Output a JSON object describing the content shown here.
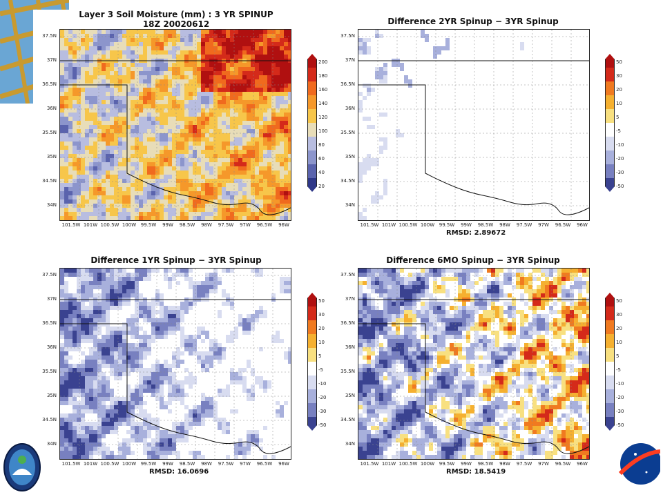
{
  "panels": [
    {
      "title_line1": "Layer 3 Soil Moisture (mm) : 3 YR SPINUP",
      "title_line2": "18Z 20020612",
      "rmsd": "",
      "colorbar": [
        "200",
        "180",
        "160",
        "140",
        "120",
        "100",
        "80",
        "60",
        "40",
        "20"
      ],
      "scheme": "moisture"
    },
    {
      "title_line1": "Difference 2YR Spinup − 3YR Spinup",
      "title_line2": "",
      "rmsd": "RMSD: 2.89672",
      "colorbar": [
        "50",
        "30",
        "20",
        "10",
        "5",
        "-5",
        "-10",
        "-20",
        "-30",
        "-50"
      ],
      "scheme": "diff-small"
    },
    {
      "title_line1": "Difference 1YR Spinup − 3YR Spinup",
      "title_line2": "",
      "rmsd": "RMSD: 16.0696",
      "colorbar": [
        "50",
        "30",
        "20",
        "10",
        "5",
        "-5",
        "-10",
        "-20",
        "-30",
        "-50"
      ],
      "scheme": "diff-neg"
    },
    {
      "title_line1": "Difference 6MO Spinup − 3YR Spinup",
      "title_line2": "",
      "rmsd": "RMSD: 18.5419",
      "colorbar": [
        "50",
        "30",
        "20",
        "10",
        "5",
        "-5",
        "-10",
        "-20",
        "-30",
        "-50"
      ],
      "scheme": "diff-mixed"
    }
  ],
  "lat_labels": [
    "37.5N",
    "37N",
    "36.5N",
    "36N",
    "35.5N",
    "35N",
    "34.5N",
    "34N"
  ],
  "lon_labels": [
    "101.5W",
    "101W",
    "100.5W",
    "100W",
    "99.5W",
    "99W",
    "98.5W",
    "98W",
    "97.5W",
    "97W",
    "96.5W",
    "96W"
  ],
  "colors": {
    "moisture": [
      "#b01010",
      "#d42a1a",
      "#f06a1e",
      "#f5982a",
      "#f7c64a",
      "#e8ddb8",
      "#b8bde0",
      "#8c95cc",
      "#5a63ad",
      "#2e3788"
    ],
    "diff": [
      "#b01010",
      "#d42a1a",
      "#f07a20",
      "#f5b030",
      "#f8e080",
      "#ffffff",
      "#d8dcf0",
      "#a8b0dc",
      "#7880c0",
      "#3a4290"
    ]
  },
  "icons": {
    "left_logo": "gsfc-mission-emblem-icon",
    "right_logo": "nasa-meatball-icon",
    "corner": "globe-grid-icon"
  }
}
